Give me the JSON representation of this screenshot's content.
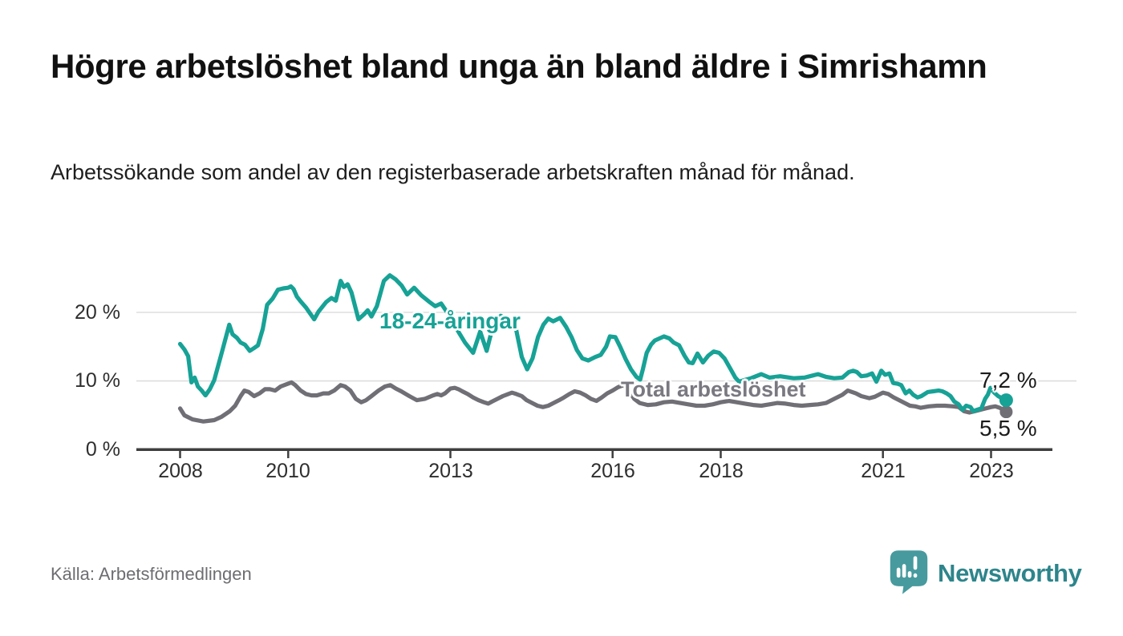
{
  "title": "Högre arbetslöshet bland unga än bland äldre i Simrishamn",
  "subtitle": "Arbetssökande som andel av den registerbaserade arbetskraften månad för månad.",
  "source": "Källa: Arbetsförmedlingen",
  "branding": {
    "name": "Newsworthy",
    "icon": "newsworthy-speech-bubble-bar-chart",
    "icon_color": "#479a9d",
    "text_color": "#2d858b"
  },
  "colors": {
    "youth_line": "#17a296",
    "total_line": "#716f76",
    "grid": "#dedede",
    "axis": "#3e3e3e",
    "tick_text": "#2e2e2e",
    "data_label_text": "#1b1b1b"
  },
  "chart_data": {
    "type": "line",
    "title": "Högre arbetslöshet bland unga än bland äldre i Simrishamn",
    "xlabel": "",
    "ylabel": "",
    "unit": "%",
    "grid": "horizontal",
    "x_axis": {
      "ticks": [
        2008,
        2010,
        2013,
        2016,
        2018,
        2021,
        2023
      ],
      "range": [
        2007.9,
        2023.6
      ]
    },
    "y_axis": {
      "tick_labels": [
        "20 %",
        "10 %",
        "0 %"
      ],
      "tick_values": [
        20,
        10,
        0
      ],
      "range": [
        0,
        27
      ]
    },
    "series": [
      {
        "name": "18-24-åringar",
        "color": "#17a296",
        "end_label": "7,2 %",
        "end_value": 7.2,
        "points": [
          [
            2008.0,
            15.4
          ],
          [
            2008.08,
            14.6
          ],
          [
            2008.15,
            13.6
          ],
          [
            2008.21,
            9.8
          ],
          [
            2008.27,
            10.5
          ],
          [
            2008.33,
            9.2
          ],
          [
            2008.4,
            8.6
          ],
          [
            2008.47,
            7.9
          ],
          [
            2008.55,
            8.8
          ],
          [
            2008.63,
            10.1
          ],
          [
            2008.77,
            14.1
          ],
          [
            2008.91,
            18.2
          ],
          [
            2008.97,
            16.8
          ],
          [
            2009.05,
            16.3
          ],
          [
            2009.12,
            15.6
          ],
          [
            2009.2,
            15.3
          ],
          [
            2009.29,
            14.4
          ],
          [
            2009.37,
            14.8
          ],
          [
            2009.44,
            15.2
          ],
          [
            2009.53,
            17.6
          ],
          [
            2009.61,
            21.1
          ],
          [
            2009.71,
            22.0
          ],
          [
            2009.81,
            23.3
          ],
          [
            2009.91,
            23.5
          ],
          [
            2010.0,
            23.6
          ],
          [
            2010.05,
            23.8
          ],
          [
            2010.1,
            23.4
          ],
          [
            2010.16,
            22.3
          ],
          [
            2010.22,
            21.7
          ],
          [
            2010.33,
            20.7
          ],
          [
            2010.48,
            19.0
          ],
          [
            2010.56,
            20.1
          ],
          [
            2010.7,
            21.5
          ],
          [
            2010.8,
            22.1
          ],
          [
            2010.88,
            21.7
          ],
          [
            2010.97,
            24.6
          ],
          [
            2011.03,
            23.7
          ],
          [
            2011.1,
            24.1
          ],
          [
            2011.17,
            22.9
          ],
          [
            2011.3,
            19.0
          ],
          [
            2011.4,
            19.7
          ],
          [
            2011.47,
            20.3
          ],
          [
            2011.54,
            19.4
          ],
          [
            2011.64,
            20.9
          ],
          [
            2011.77,
            24.6
          ],
          [
            2011.88,
            25.4
          ],
          [
            2011.99,
            24.8
          ],
          [
            2012.1,
            23.9
          ],
          [
            2012.2,
            22.6
          ],
          [
            2012.33,
            23.6
          ],
          [
            2012.46,
            22.5
          ],
          [
            2012.6,
            21.6
          ],
          [
            2012.72,
            20.9
          ],
          [
            2012.83,
            21.3
          ],
          [
            2012.95,
            19.9
          ],
          [
            2013.1,
            17.8
          ],
          [
            2013.27,
            15.6
          ],
          [
            2013.42,
            14.1
          ],
          [
            2013.55,
            17.2
          ],
          [
            2013.67,
            14.4
          ],
          [
            2013.8,
            18.4
          ],
          [
            2013.93,
            19.5
          ],
          [
            2014.08,
            19.0
          ],
          [
            2014.2,
            18.1
          ],
          [
            2014.32,
            13.5
          ],
          [
            2014.42,
            11.7
          ],
          [
            2014.52,
            13.3
          ],
          [
            2014.62,
            16.4
          ],
          [
            2014.72,
            18.2
          ],
          [
            2014.81,
            19.1
          ],
          [
            2014.9,
            18.7
          ],
          [
            2015.03,
            19.2
          ],
          [
            2015.14,
            17.9
          ],
          [
            2015.24,
            16.4
          ],
          [
            2015.34,
            14.5
          ],
          [
            2015.44,
            13.3
          ],
          [
            2015.55,
            13.0
          ],
          [
            2015.68,
            13.5
          ],
          [
            2015.78,
            13.8
          ],
          [
            2015.88,
            15.0
          ],
          [
            2015.95,
            16.5
          ],
          [
            2016.05,
            16.4
          ],
          [
            2016.14,
            15.0
          ],
          [
            2016.24,
            13.2
          ],
          [
            2016.34,
            11.7
          ],
          [
            2016.44,
            10.6
          ],
          [
            2016.51,
            10.2
          ],
          [
            2016.56,
            11.7
          ],
          [
            2016.63,
            14.1
          ],
          [
            2016.71,
            15.3
          ],
          [
            2016.78,
            15.9
          ],
          [
            2016.95,
            16.5
          ],
          [
            2017.05,
            16.2
          ],
          [
            2017.13,
            15.6
          ],
          [
            2017.23,
            15.2
          ],
          [
            2017.33,
            13.7
          ],
          [
            2017.41,
            12.7
          ],
          [
            2017.48,
            12.6
          ],
          [
            2017.57,
            14.0
          ],
          [
            2017.67,
            12.7
          ],
          [
            2017.77,
            13.7
          ],
          [
            2017.87,
            14.3
          ],
          [
            2017.97,
            14.1
          ],
          [
            2018.07,
            13.3
          ],
          [
            2018.17,
            11.9
          ],
          [
            2018.27,
            10.5
          ],
          [
            2018.34,
            9.9
          ],
          [
            2018.42,
            10.1
          ],
          [
            2018.56,
            10.4
          ],
          [
            2018.75,
            11.0
          ],
          [
            2018.9,
            10.5
          ],
          [
            2019.1,
            10.7
          ],
          [
            2019.35,
            10.4
          ],
          [
            2019.55,
            10.5
          ],
          [
            2019.7,
            10.8
          ],
          [
            2019.8,
            11.0
          ],
          [
            2019.95,
            10.6
          ],
          [
            2020.1,
            10.4
          ],
          [
            2020.25,
            10.5
          ],
          [
            2020.37,
            11.3
          ],
          [
            2020.45,
            11.5
          ],
          [
            2020.52,
            11.3
          ],
          [
            2020.6,
            10.7
          ],
          [
            2020.7,
            10.8
          ],
          [
            2020.8,
            11.1
          ],
          [
            2020.88,
            9.9
          ],
          [
            2020.97,
            11.5
          ],
          [
            2021.04,
            10.9
          ],
          [
            2021.12,
            11.1
          ],
          [
            2021.19,
            9.7
          ],
          [
            2021.27,
            9.6
          ],
          [
            2021.34,
            9.4
          ],
          [
            2021.42,
            8.2
          ],
          [
            2021.49,
            8.6
          ],
          [
            2021.56,
            8.0
          ],
          [
            2021.64,
            7.6
          ],
          [
            2021.71,
            7.8
          ],
          [
            2021.83,
            8.4
          ],
          [
            2021.93,
            8.5
          ],
          [
            2022.03,
            8.6
          ],
          [
            2022.1,
            8.5
          ],
          [
            2022.18,
            8.2
          ],
          [
            2022.25,
            7.8
          ],
          [
            2022.32,
            7.0
          ],
          [
            2022.4,
            6.6
          ],
          [
            2022.47,
            5.8
          ],
          [
            2022.54,
            6.4
          ],
          [
            2022.62,
            6.2
          ],
          [
            2022.67,
            5.6
          ],
          [
            2022.74,
            5.8
          ],
          [
            2022.82,
            6.0
          ],
          [
            2022.89,
            7.4
          ],
          [
            2022.94,
            8.0
          ],
          [
            2022.99,
            9.0
          ],
          [
            2023.06,
            8.3
          ],
          [
            2023.13,
            7.8
          ],
          [
            2023.2,
            7.5
          ],
          [
            2023.28,
            7.2
          ]
        ]
      },
      {
        "name": "Total arbetslöshet",
        "color": "#716f76",
        "end_label": "5,5 %",
        "end_value": 5.5,
        "points": [
          [
            2008.0,
            6.0
          ],
          [
            2008.08,
            5.0
          ],
          [
            2008.23,
            4.4
          ],
          [
            2008.43,
            4.1
          ],
          [
            2008.63,
            4.3
          ],
          [
            2008.77,
            4.8
          ],
          [
            2008.92,
            5.6
          ],
          [
            2009.02,
            6.4
          ],
          [
            2009.12,
            7.8
          ],
          [
            2009.19,
            8.6
          ],
          [
            2009.27,
            8.4
          ],
          [
            2009.37,
            7.8
          ],
          [
            2009.47,
            8.2
          ],
          [
            2009.57,
            8.8
          ],
          [
            2009.66,
            8.8
          ],
          [
            2009.76,
            8.6
          ],
          [
            2009.86,
            9.2
          ],
          [
            2009.96,
            9.5
          ],
          [
            2010.06,
            9.8
          ],
          [
            2010.13,
            9.4
          ],
          [
            2010.23,
            8.6
          ],
          [
            2010.33,
            8.1
          ],
          [
            2010.43,
            7.9
          ],
          [
            2010.53,
            7.9
          ],
          [
            2010.65,
            8.2
          ],
          [
            2010.75,
            8.2
          ],
          [
            2010.85,
            8.6
          ],
          [
            2010.97,
            9.4
          ],
          [
            2011.05,
            9.2
          ],
          [
            2011.15,
            8.6
          ],
          [
            2011.25,
            7.4
          ],
          [
            2011.35,
            6.9
          ],
          [
            2011.44,
            7.2
          ],
          [
            2011.54,
            7.8
          ],
          [
            2011.67,
            8.6
          ],
          [
            2011.79,
            9.2
          ],
          [
            2011.89,
            9.4
          ],
          [
            2011.99,
            8.9
          ],
          [
            2012.09,
            8.5
          ],
          [
            2012.24,
            7.8
          ],
          [
            2012.38,
            7.2
          ],
          [
            2012.53,
            7.4
          ],
          [
            2012.68,
            7.9
          ],
          [
            2012.76,
            8.1
          ],
          [
            2012.83,
            7.9
          ],
          [
            2012.9,
            8.2
          ],
          [
            2013.0,
            8.9
          ],
          [
            2013.08,
            9.0
          ],
          [
            2013.15,
            8.8
          ],
          [
            2013.22,
            8.5
          ],
          [
            2013.32,
            8.1
          ],
          [
            2013.42,
            7.6
          ],
          [
            2013.52,
            7.2
          ],
          [
            2013.62,
            6.9
          ],
          [
            2013.7,
            6.7
          ],
          [
            2013.77,
            7.0
          ],
          [
            2013.87,
            7.4
          ],
          [
            2013.97,
            7.8
          ],
          [
            2014.07,
            8.1
          ],
          [
            2014.14,
            8.3
          ],
          [
            2014.22,
            8.1
          ],
          [
            2014.32,
            7.8
          ],
          [
            2014.41,
            7.2
          ],
          [
            2014.51,
            6.8
          ],
          [
            2014.61,
            6.4
          ],
          [
            2014.71,
            6.2
          ],
          [
            2014.81,
            6.4
          ],
          [
            2014.91,
            6.8
          ],
          [
            2015.01,
            7.2
          ],
          [
            2015.1,
            7.6
          ],
          [
            2015.2,
            8.1
          ],
          [
            2015.3,
            8.5
          ],
          [
            2015.4,
            8.3
          ],
          [
            2015.5,
            7.9
          ],
          [
            2015.6,
            7.4
          ],
          [
            2015.7,
            7.1
          ],
          [
            2015.8,
            7.6
          ],
          [
            2015.9,
            8.2
          ],
          [
            2016.0,
            8.6
          ],
          [
            2016.1,
            9.1
          ],
          [
            2016.2,
            9.4
          ],
          [
            2016.3,
            8.6
          ],
          [
            2016.4,
            7.4
          ],
          [
            2016.5,
            6.8
          ],
          [
            2016.65,
            6.5
          ],
          [
            2016.8,
            6.6
          ],
          [
            2016.95,
            6.9
          ],
          [
            2017.1,
            7.0
          ],
          [
            2017.25,
            6.8
          ],
          [
            2017.4,
            6.6
          ],
          [
            2017.55,
            6.4
          ],
          [
            2017.7,
            6.4
          ],
          [
            2017.85,
            6.6
          ],
          [
            2018.0,
            6.9
          ],
          [
            2018.15,
            7.1
          ],
          [
            2018.3,
            6.9
          ],
          [
            2018.45,
            6.7
          ],
          [
            2018.6,
            6.5
          ],
          [
            2018.75,
            6.4
          ],
          [
            2018.9,
            6.6
          ],
          [
            2019.05,
            6.8
          ],
          [
            2019.2,
            6.7
          ],
          [
            2019.35,
            6.5
          ],
          [
            2019.5,
            6.4
          ],
          [
            2019.65,
            6.5
          ],
          [
            2019.8,
            6.6
          ],
          [
            2019.95,
            6.8
          ],
          [
            2020.1,
            7.4
          ],
          [
            2020.25,
            8.0
          ],
          [
            2020.35,
            8.6
          ],
          [
            2020.5,
            8.2
          ],
          [
            2020.6,
            7.8
          ],
          [
            2020.75,
            7.5
          ],
          [
            2020.85,
            7.7
          ],
          [
            2021.0,
            8.3
          ],
          [
            2021.1,
            8.1
          ],
          [
            2021.2,
            7.6
          ],
          [
            2021.3,
            7.2
          ],
          [
            2021.4,
            6.8
          ],
          [
            2021.5,
            6.4
          ],
          [
            2021.6,
            6.3
          ],
          [
            2021.7,
            6.1
          ],
          [
            2021.85,
            6.3
          ],
          [
            2022.0,
            6.4
          ],
          [
            2022.15,
            6.4
          ],
          [
            2022.3,
            6.3
          ],
          [
            2022.4,
            6.2
          ],
          [
            2022.5,
            5.6
          ],
          [
            2022.6,
            5.4
          ],
          [
            2022.7,
            5.6
          ],
          [
            2022.8,
            5.8
          ],
          [
            2022.9,
            6.0
          ],
          [
            2023.0,
            6.2
          ],
          [
            2023.08,
            6.3
          ],
          [
            2023.16,
            6.1
          ],
          [
            2023.28,
            5.5
          ]
        ]
      }
    ]
  }
}
